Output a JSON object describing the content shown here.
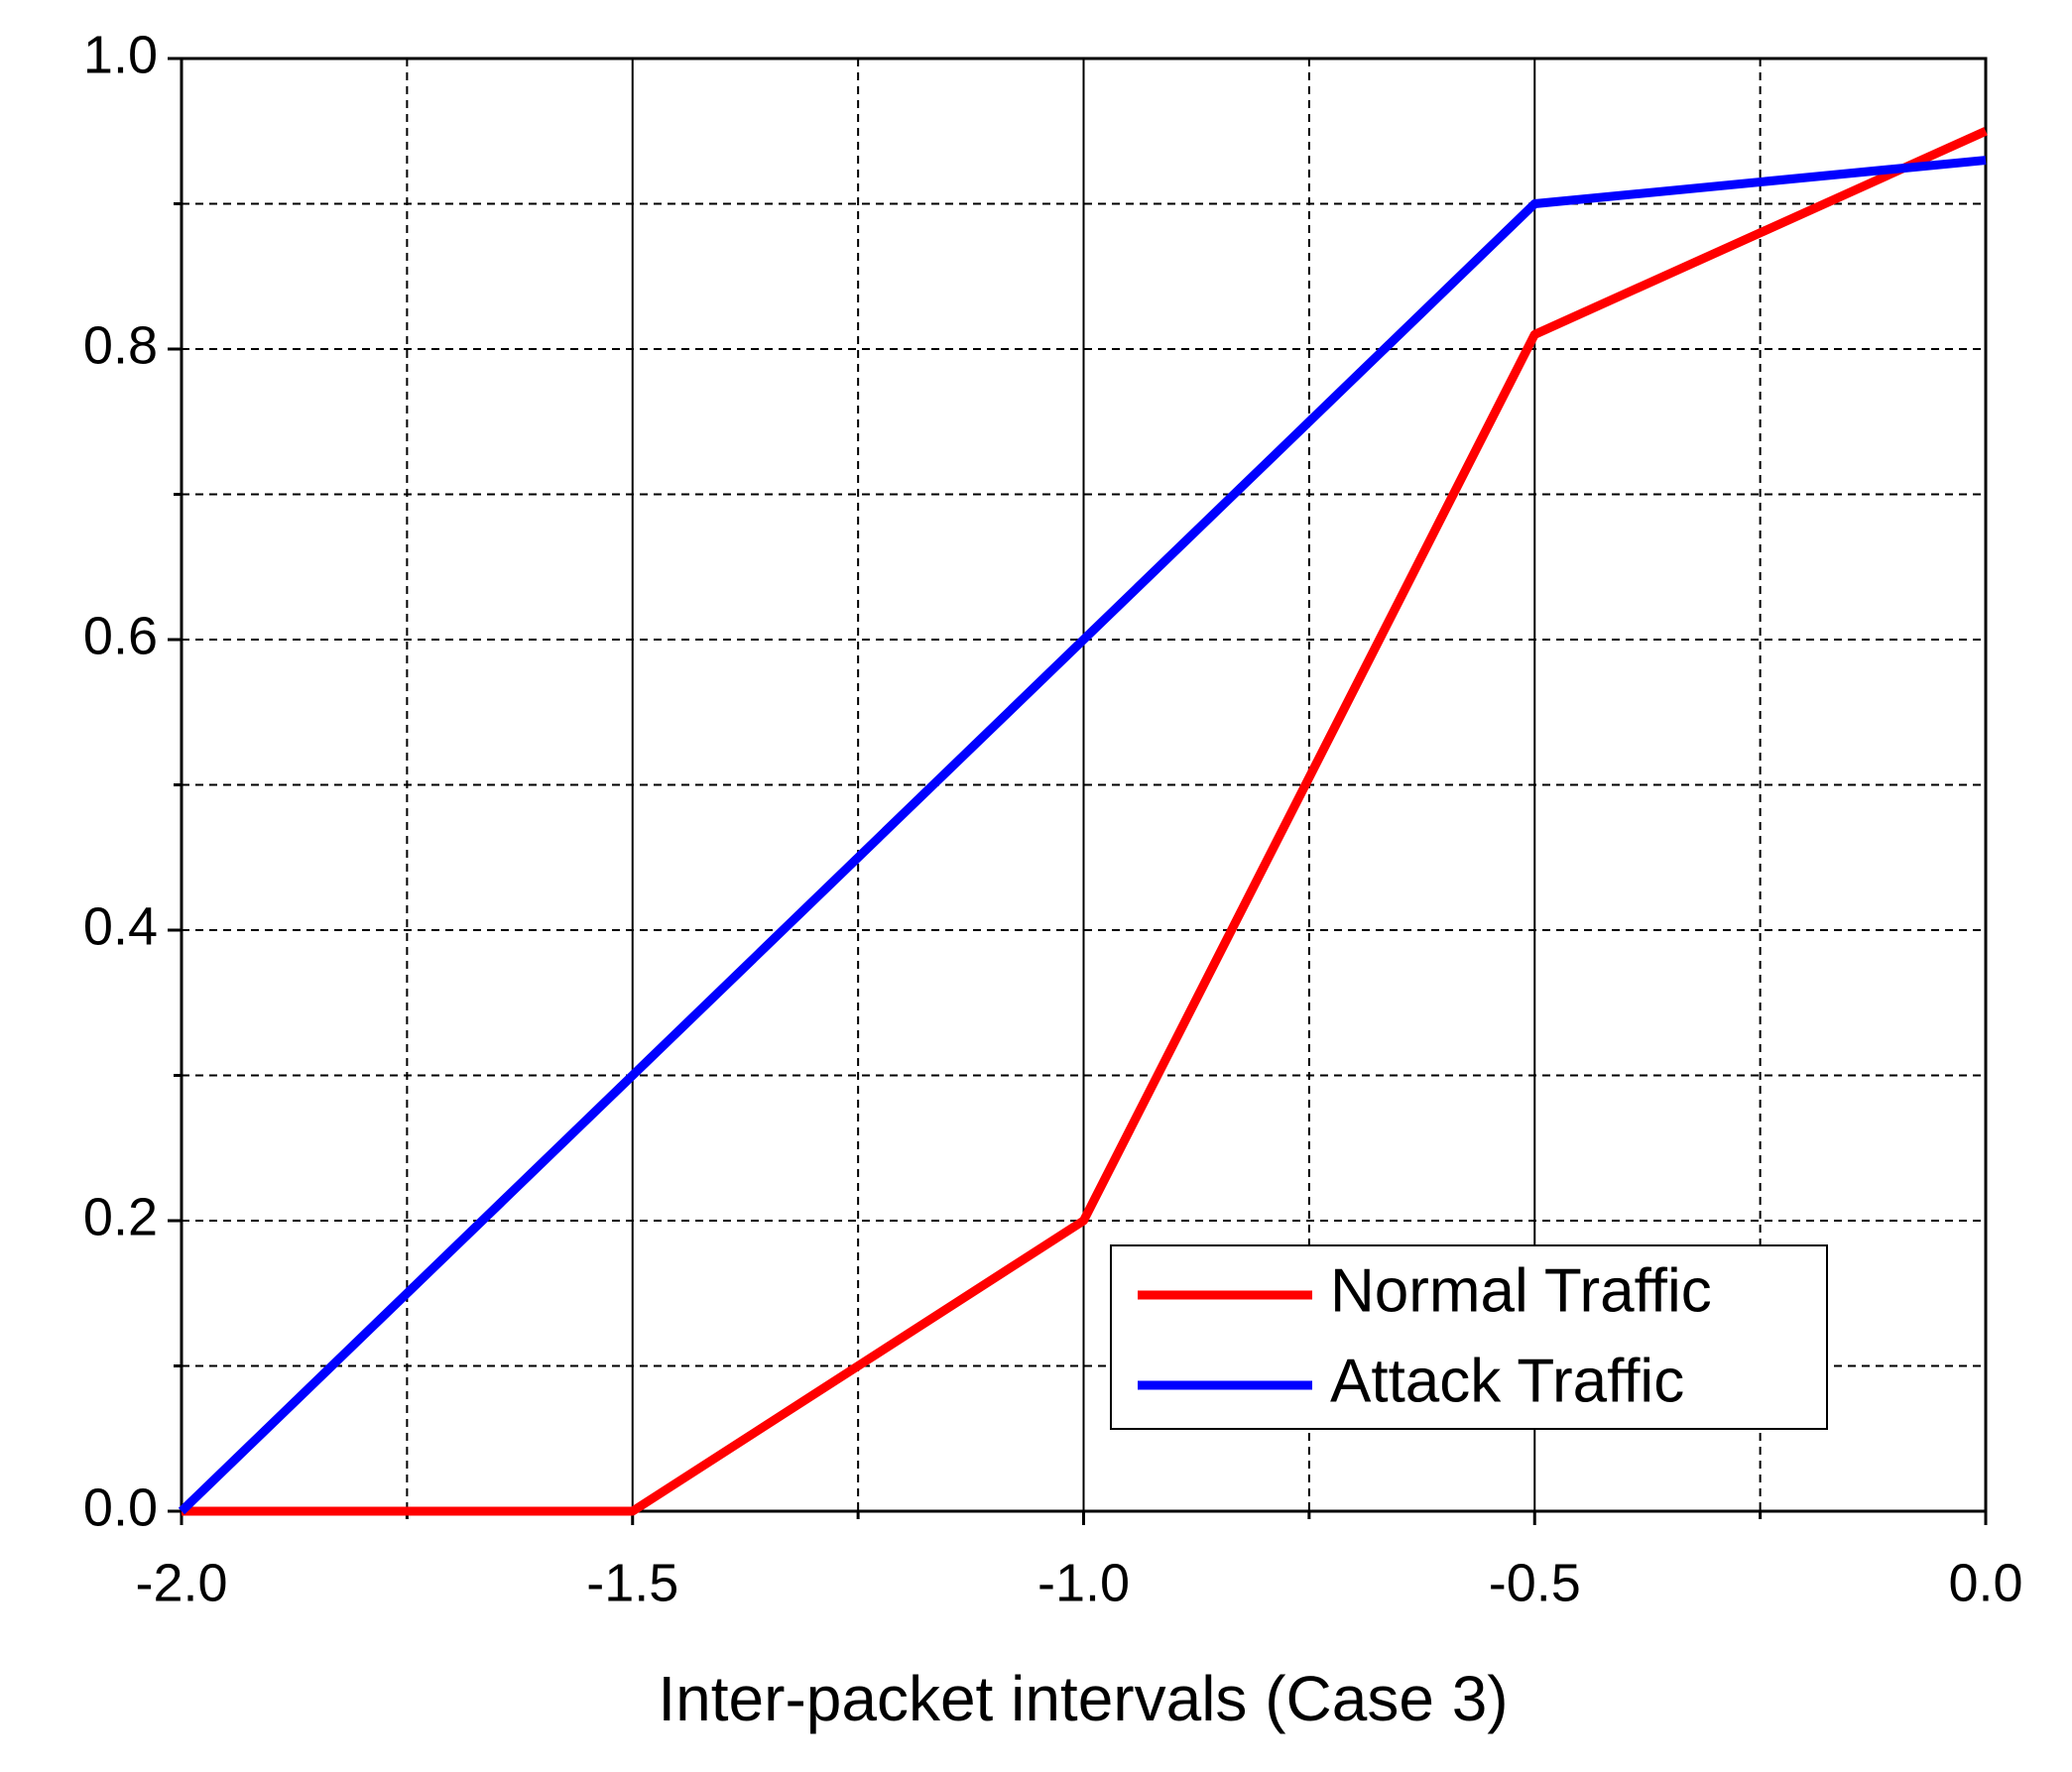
{
  "chart_data": {
    "type": "line",
    "x_label": "Inter-packet intervals (Case 3)",
    "x": [
      -2.0,
      -1.5,
      -1.0,
      -0.5,
      0.0
    ],
    "series": [
      {
        "name": "Normal Traffic",
        "color": "#ff0000",
        "values": [
          0,
          0,
          0.2,
          0.81,
          0.95
        ]
      },
      {
        "name": "Attack Traffic",
        "color": "#0000ff",
        "values": [
          0,
          0.3,
          0.6,
          0.9,
          0.93
        ]
      }
    ],
    "xlim": [
      -2.0,
      0.0
    ],
    "xticks": [
      {
        "value": -2,
        "label": "-2.0"
      },
      {
        "value": -1.5,
        "label": "-1.5"
      },
      {
        "value": -1,
        "label": "-1.0"
      },
      {
        "value": -0.5,
        "label": "-0.5"
      },
      {
        "value": 0,
        "label": "0.0"
      }
    ],
    "xminor": [
      -1.75,
      -1.25,
      -0.75,
      -0.25
    ],
    "ylim": [
      0.0,
      1.0
    ],
    "yticks": [
      {
        "value": 0,
        "label": "0.0"
      },
      0.2,
      0.4,
      0.6,
      0.8,
      {
        "value": 1,
        "label": "1.0"
      }
    ],
    "yminor": [
      0.1,
      0.3,
      0.5,
      0.7,
      0.9
    ],
    "grid": true,
    "legend": "lower right"
  }
}
